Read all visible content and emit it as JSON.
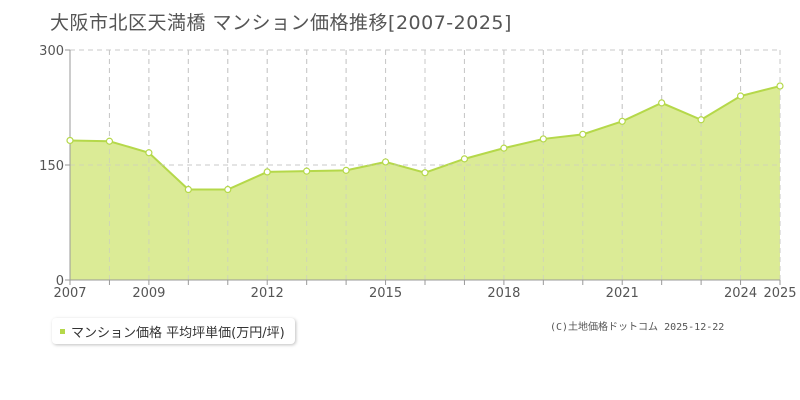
{
  "title": "大阪市北区天満橋 マンション価格推移[2007-2025]",
  "legend": {
    "label": "マンション価格 平均坪単価(万円/坪)"
  },
  "credit": "(C)土地価格ドットコム 2025-12-22",
  "colors": {
    "area_fill": "#dbeb96",
    "line": "#b5d84a",
    "grid": "#c8c8c8",
    "axis": "#999999",
    "point_fill": "#ffffff"
  },
  "chart_data": {
    "type": "area",
    "title": "大阪市北区天満橋 マンション価格推移[2007-2025]",
    "xlabel": "",
    "ylabel": "",
    "ylim": [
      0,
      300
    ],
    "yticks": [
      "0",
      "150",
      "300"
    ],
    "xticks": [
      "2007",
      "2009",
      "2012",
      "2015",
      "2018",
      "2021",
      "2024",
      "2025"
    ],
    "x": [
      2007,
      2008,
      2009,
      2010,
      2011,
      2012,
      2013,
      2014,
      2015,
      2016,
      2017,
      2018,
      2019,
      2020,
      2021,
      2022,
      2023,
      2024,
      2025
    ],
    "series": [
      {
        "name": "マンション価格 平均坪単価(万円/坪)",
        "values": [
          182,
          181,
          166,
          118,
          118,
          141,
          142,
          143,
          154,
          140,
          158,
          172,
          184,
          190,
          207,
          231,
          209,
          240,
          253
        ]
      }
    ],
    "grid": true,
    "legend_position": "bottom-left"
  }
}
